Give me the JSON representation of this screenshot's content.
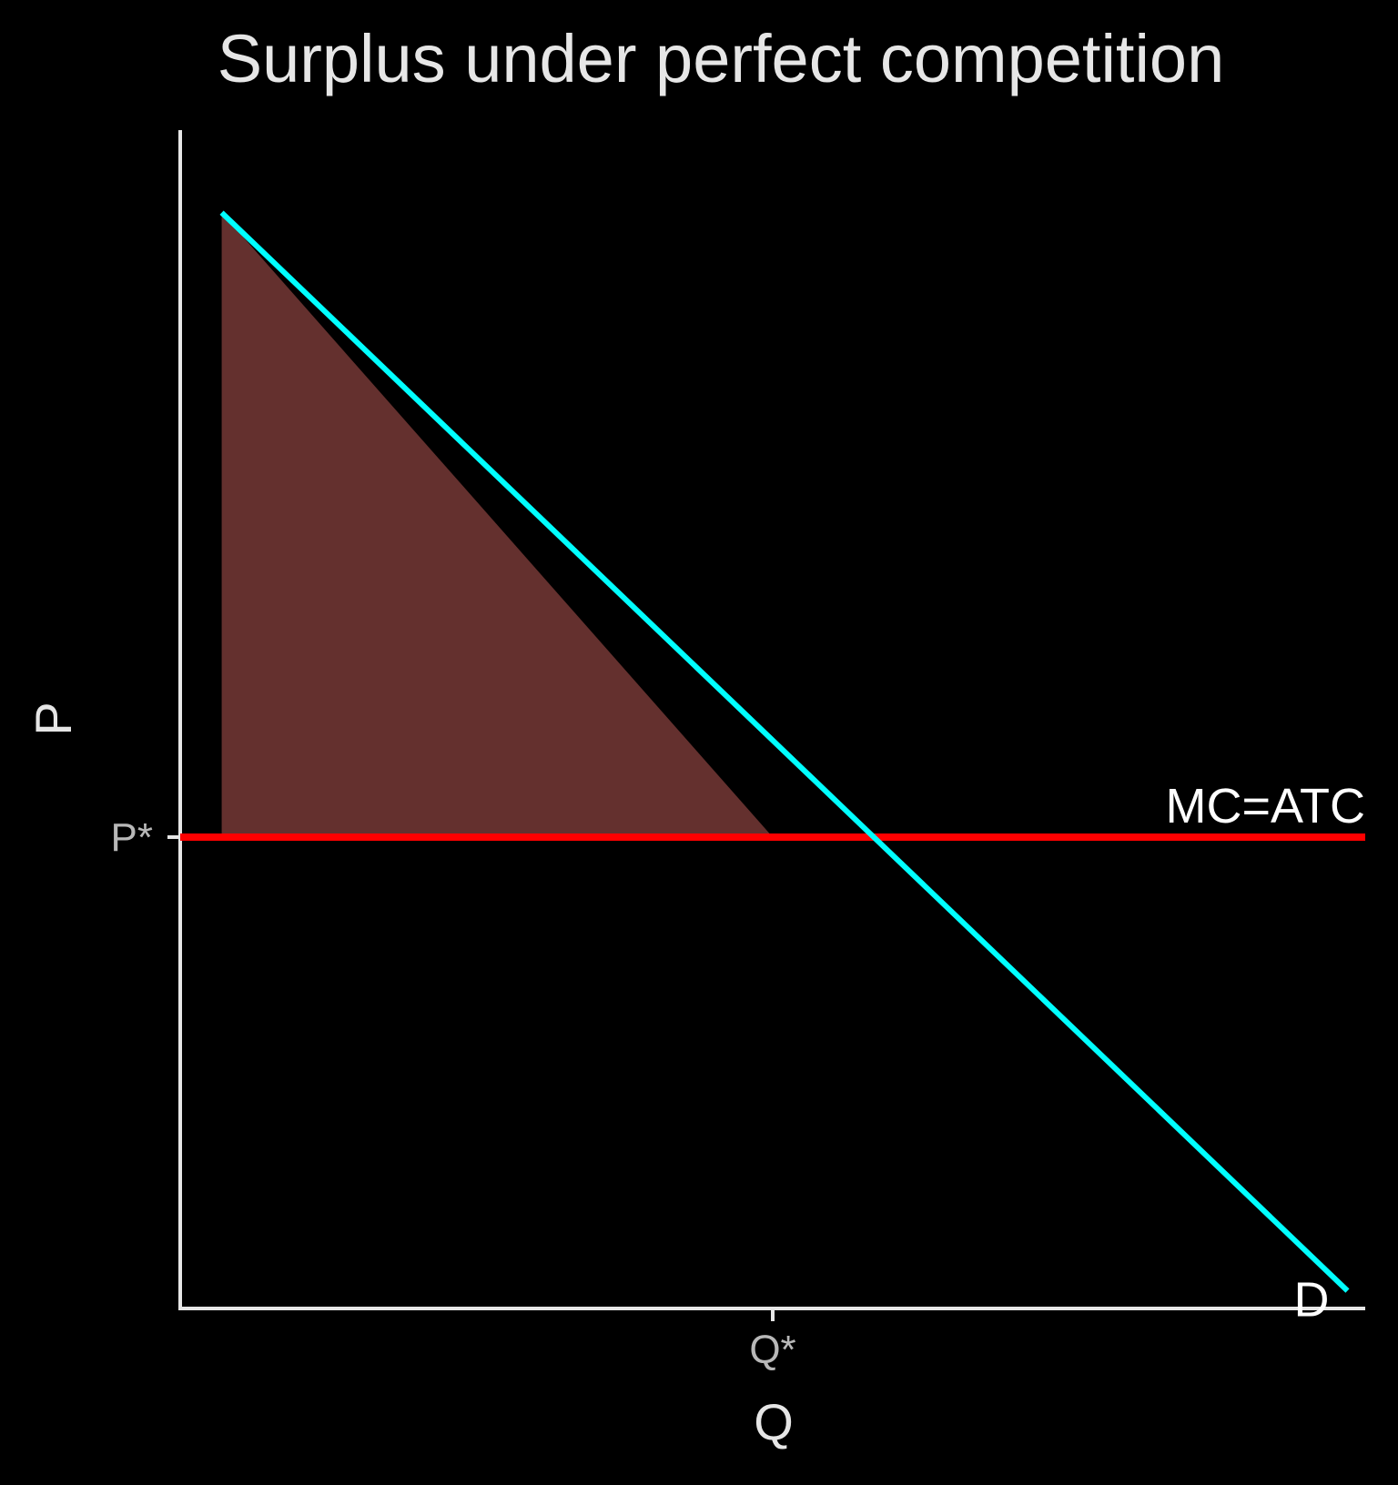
{
  "chart_data": {
    "type": "line",
    "title": "Surplus under perfect competition",
    "xlabel": "Q",
    "ylabel": "P",
    "xlim": [
      0,
      10
    ],
    "ylim": [
      0,
      10
    ],
    "grid": false,
    "x_ticks": [
      {
        "value": 5,
        "label": "Q*"
      }
    ],
    "y_ticks": [
      {
        "value": 4,
        "label": "P*"
      }
    ],
    "series": [
      {
        "name": "D",
        "color": "#00ffff",
        "x": [
          0.35,
          9.85
        ],
        "y": [
          9.3,
          0.15
        ]
      },
      {
        "name": "MC=ATC",
        "color": "#ff0000",
        "x": [
          0,
          10
        ],
        "y": [
          4,
          4
        ]
      }
    ],
    "shaded_area": {
      "color": "#64302e",
      "polygon": [
        [
          0.35,
          9.3
        ],
        [
          0.35,
          4
        ],
        [
          5,
          4
        ]
      ]
    },
    "background": "#000000",
    "axis_color": "#e6e6e6"
  }
}
